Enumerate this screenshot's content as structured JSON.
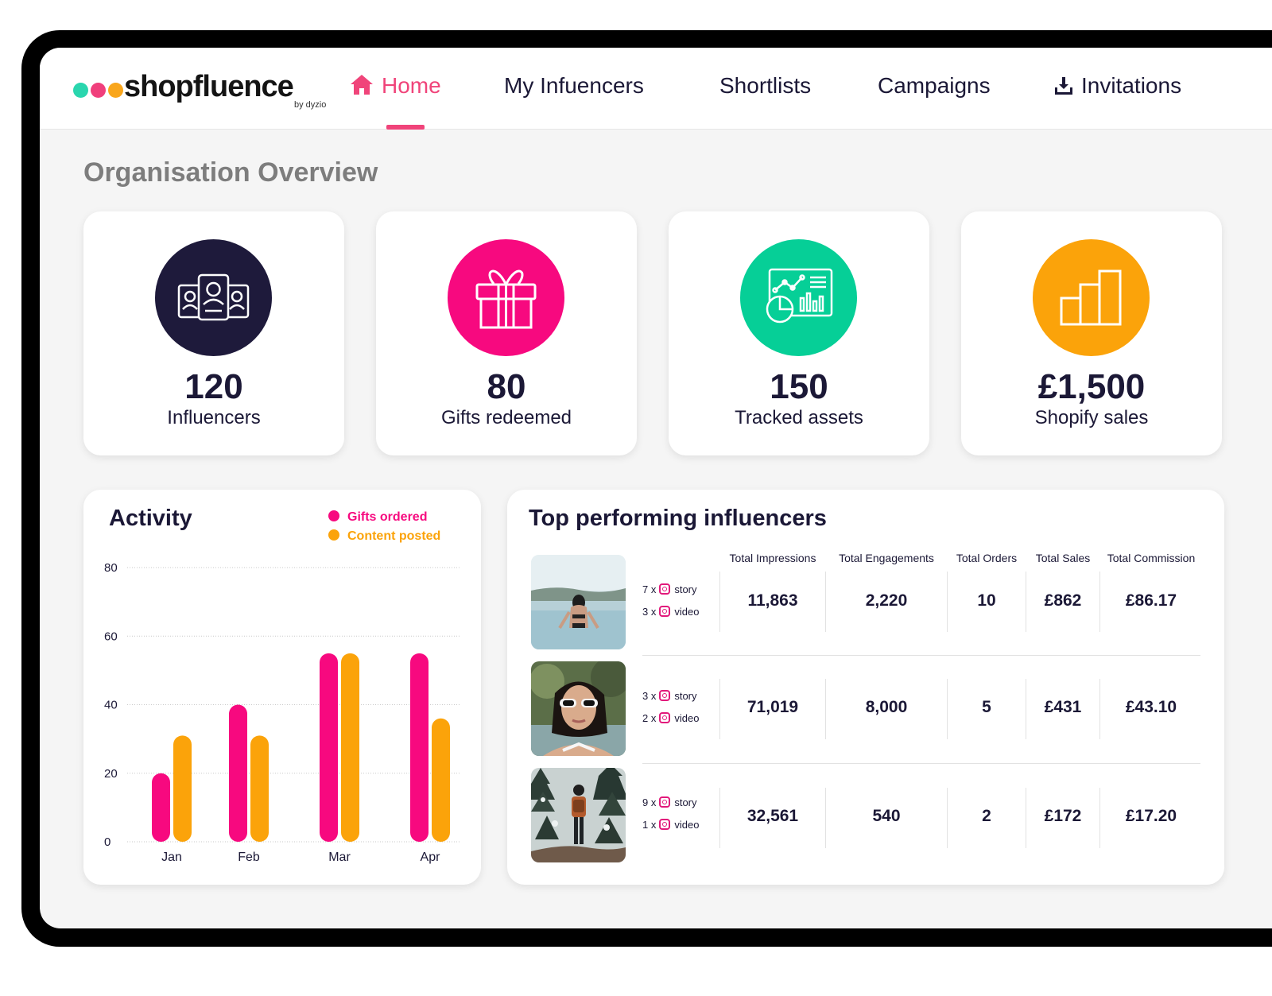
{
  "brand": {
    "name": "shopfluence",
    "byline": "by dyzio",
    "dot_colors": [
      "#2ad6ae",
      "#f03f7c",
      "#f9a61c"
    ]
  },
  "nav": [
    {
      "label": "Home",
      "icon": "home-icon",
      "active": true
    },
    {
      "label": "My Infuencers",
      "active": false
    },
    {
      "label": "Shortlists",
      "active": false
    },
    {
      "label": "Campaigns",
      "active": false
    },
    {
      "label": "Invitations",
      "icon": "download-icon",
      "active": false
    }
  ],
  "page_title": "Organisation Overview",
  "kpis": [
    {
      "value": "120",
      "label": "Influencers",
      "icon": "influencer-cards-icon",
      "color": "#1e1a3b"
    },
    {
      "value": "80",
      "label": "Gifts redeemed",
      "icon": "gift-icon",
      "color": "#f7097f"
    },
    {
      "value": "150",
      "label": "Tracked assets",
      "icon": "analytics-dashboard-icon",
      "color": "#06cf97"
    },
    {
      "value": "£1,500",
      "label": "Shopify sales",
      "icon": "bar-chart-icon",
      "color": "#fba30a"
    }
  ],
  "activity": {
    "title": "Activity",
    "legend": [
      {
        "label": "Gifts ordered",
        "color": "#f7097f"
      },
      {
        "label": "Content posted",
        "color": "#fba30a"
      }
    ]
  },
  "chart_data": {
    "type": "bar",
    "title": "Activity",
    "categories": [
      "Jan",
      "Feb",
      "Mar",
      "Apr"
    ],
    "series": [
      {
        "name": "Gifts ordered",
        "values": [
          20,
          40,
          55,
          55
        ],
        "color": "#f7097f"
      },
      {
        "name": "Content posted",
        "values": [
          31,
          31,
          55,
          36
        ],
        "color": "#fba30a"
      }
    ],
    "ylim": [
      0,
      80
    ],
    "yticks": [
      0,
      20,
      40,
      60,
      80
    ],
    "grid": true,
    "legend_position": "top-right"
  },
  "top": {
    "title": "Top performing influencers",
    "columns": [
      "Total Impressions",
      "Total Engagements",
      "Total Orders",
      "Total Sales",
      "Total Commission"
    ],
    "rows": [
      {
        "image": "woman-in-infinity-pool-photo",
        "story": "7 x",
        "video": "3 x",
        "story_label": "story",
        "video_label": "video",
        "impressions": "11,863",
        "engagements": "2,220",
        "orders": "10",
        "sales": "£862",
        "commission": "£86.17"
      },
      {
        "image": "woman-in-white-sunglasses-photo",
        "story": "3 x",
        "video": "2 x",
        "story_label": "story",
        "video_label": "video",
        "impressions": "71,019",
        "engagements": "8,000",
        "orders": "5",
        "sales": "£431",
        "commission": "£43.10"
      },
      {
        "image": "hiker-in-snowy-forest-photo",
        "story": "9 x",
        "video": "1 x",
        "story_label": "story",
        "video_label": "video",
        "impressions": "32,561",
        "engagements": "540",
        "orders": "2",
        "sales": "£172",
        "commission": "£17.20"
      }
    ]
  }
}
